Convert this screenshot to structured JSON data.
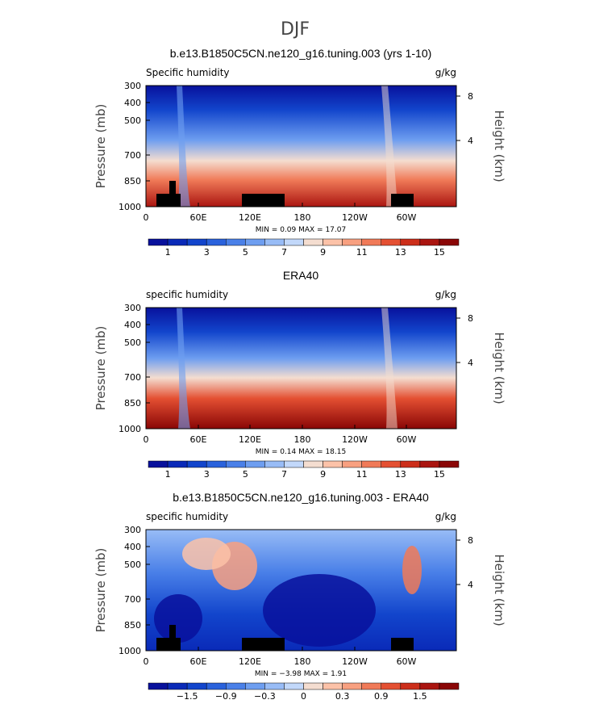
{
  "page_title": "DJF",
  "chart_data": [
    {
      "type": "heatmap",
      "title": "b.e13.B1850C5CN.ne120_g16.tuning.003 (yrs 1-10)",
      "left_label": "Specific humidity",
      "right_label": "g/kg",
      "ylabel": "Pressure (mb)",
      "ylabel_right": "Height (km)",
      "y_ticks": [
        "300",
        "400",
        "500",
        "700",
        "850",
        "1000"
      ],
      "y_ticks_right": [
        "8",
        "4"
      ],
      "x_ticks": [
        "0",
        "60E",
        "120E",
        "180",
        "120W",
        "60W"
      ],
      "stats": "MIN =    0.09   MAX =   17.07",
      "colorbar_labels": [
        "1",
        "3",
        "5",
        "7",
        "9",
        "11",
        "13",
        "15"
      ],
      "colorbar_colors": [
        "#08119c",
        "#0a2ab8",
        "#1245cc",
        "#2a62dc",
        "#4a80e8",
        "#6e9ef0",
        "#98bcf6",
        "#c2d8fa",
        "#f4ddd0",
        "#fcc2a8",
        "#f8a080",
        "#f07a58",
        "#e45032",
        "#cc2e1a",
        "#aa1510",
        "#8a0606"
      ],
      "min": 0.09,
      "max": 17.07
    },
    {
      "type": "heatmap",
      "title": "ERA40",
      "left_label": "specific humidity",
      "right_label": "g/kg",
      "ylabel": "Pressure (mb)",
      "ylabel_right": "Height (km)",
      "y_ticks": [
        "300",
        "400",
        "500",
        "700",
        "850",
        "1000"
      ],
      "y_ticks_right": [
        "8",
        "4"
      ],
      "x_ticks": [
        "0",
        "60E",
        "120E",
        "180",
        "120W",
        "60W"
      ],
      "stats": "MIN =    0.14   MAX =   18.15",
      "colorbar_labels": [
        "1",
        "3",
        "5",
        "7",
        "9",
        "11",
        "13",
        "15"
      ],
      "colorbar_colors": [
        "#08119c",
        "#0a2ab8",
        "#1245cc",
        "#2a62dc",
        "#4a80e8",
        "#6e9ef0",
        "#98bcf6",
        "#c2d8fa",
        "#f4ddd0",
        "#fcc2a8",
        "#f8a080",
        "#f07a58",
        "#e45032",
        "#cc2e1a",
        "#aa1510",
        "#8a0606"
      ],
      "min": 0.14,
      "max": 18.15
    },
    {
      "type": "heatmap",
      "title": "b.e13.B1850C5CN.ne120_g16.tuning.003 - ERA40",
      "left_label": "specific humidity",
      "right_label": "g/kg",
      "ylabel": "Pressure (mb)",
      "ylabel_right": "Height (km)",
      "y_ticks": [
        "300",
        "400",
        "500",
        "700",
        "850",
        "1000"
      ],
      "y_ticks_right": [
        "8",
        "4"
      ],
      "x_ticks": [
        "0",
        "60E",
        "120E",
        "180",
        "120W",
        "60W"
      ],
      "stats": "MIN =   −3.98   MAX =   1.91",
      "colorbar_labels": [
        "−1.5",
        "−0.9",
        "−0.3",
        "0",
        "0.3",
        "0.9",
        "1.5"
      ],
      "colorbar_colors": [
        "#08119c",
        "#0a2ab8",
        "#1245cc",
        "#2a62dc",
        "#4a80e8",
        "#6e9ef0",
        "#98bcf6",
        "#c2d8fa",
        "#f4ddd0",
        "#fcc2a8",
        "#f8a080",
        "#f07a58",
        "#e45032",
        "#cc2e1a",
        "#aa1510",
        "#8a0606"
      ],
      "min": -3.98,
      "max": 1.91
    }
  ]
}
